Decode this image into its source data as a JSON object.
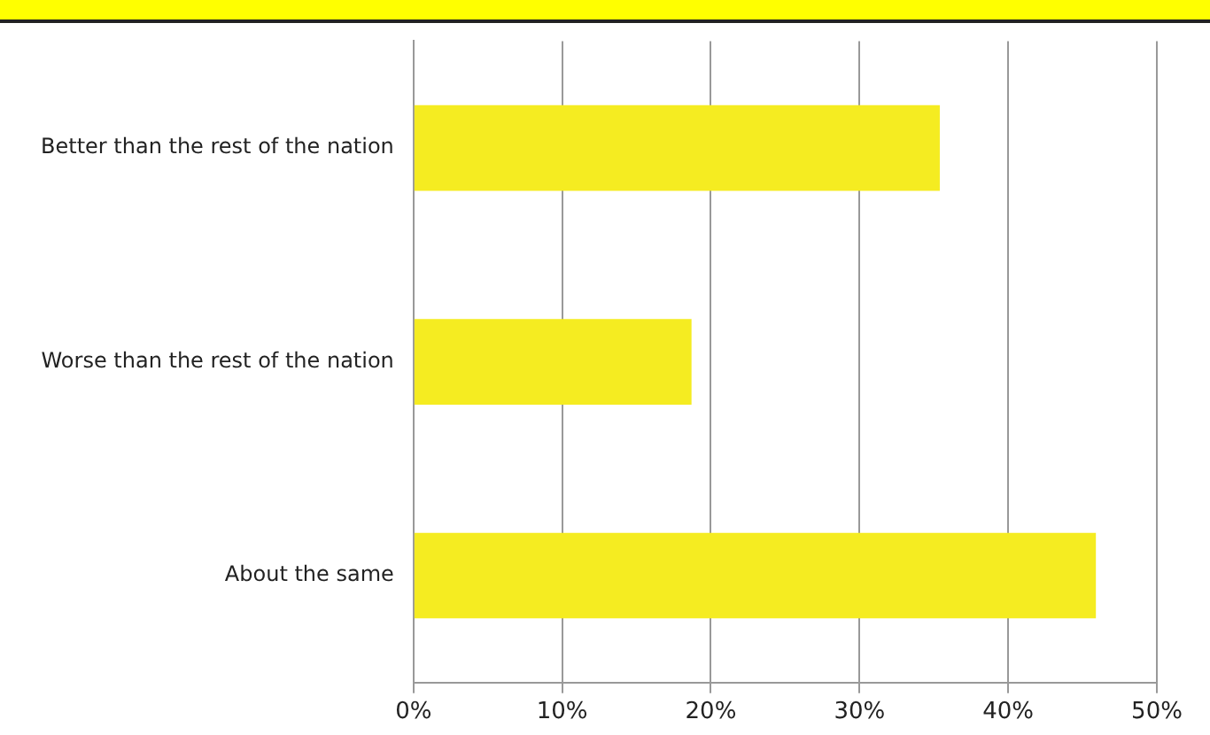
{
  "chart_data": {
    "type": "bar",
    "orientation": "horizontal",
    "categories": [
      "Better than the rest of the nation",
      "Worse than the rest of the nation",
      "About the same"
    ],
    "values": [
      35.4,
      18.7,
      45.9
    ],
    "color": "#f5ec21",
    "xlim": [
      0,
      50
    ],
    "xticks": [
      {
        "value": 0,
        "label": "0%"
      },
      {
        "value": 10,
        "label": "10%"
      },
      {
        "value": 20,
        "label": "20%"
      },
      {
        "value": 30,
        "label": "30%"
      },
      {
        "value": 40,
        "label": "40%"
      },
      {
        "value": 50,
        "label": "50%"
      }
    ],
    "grid": "x",
    "legend": false
  }
}
